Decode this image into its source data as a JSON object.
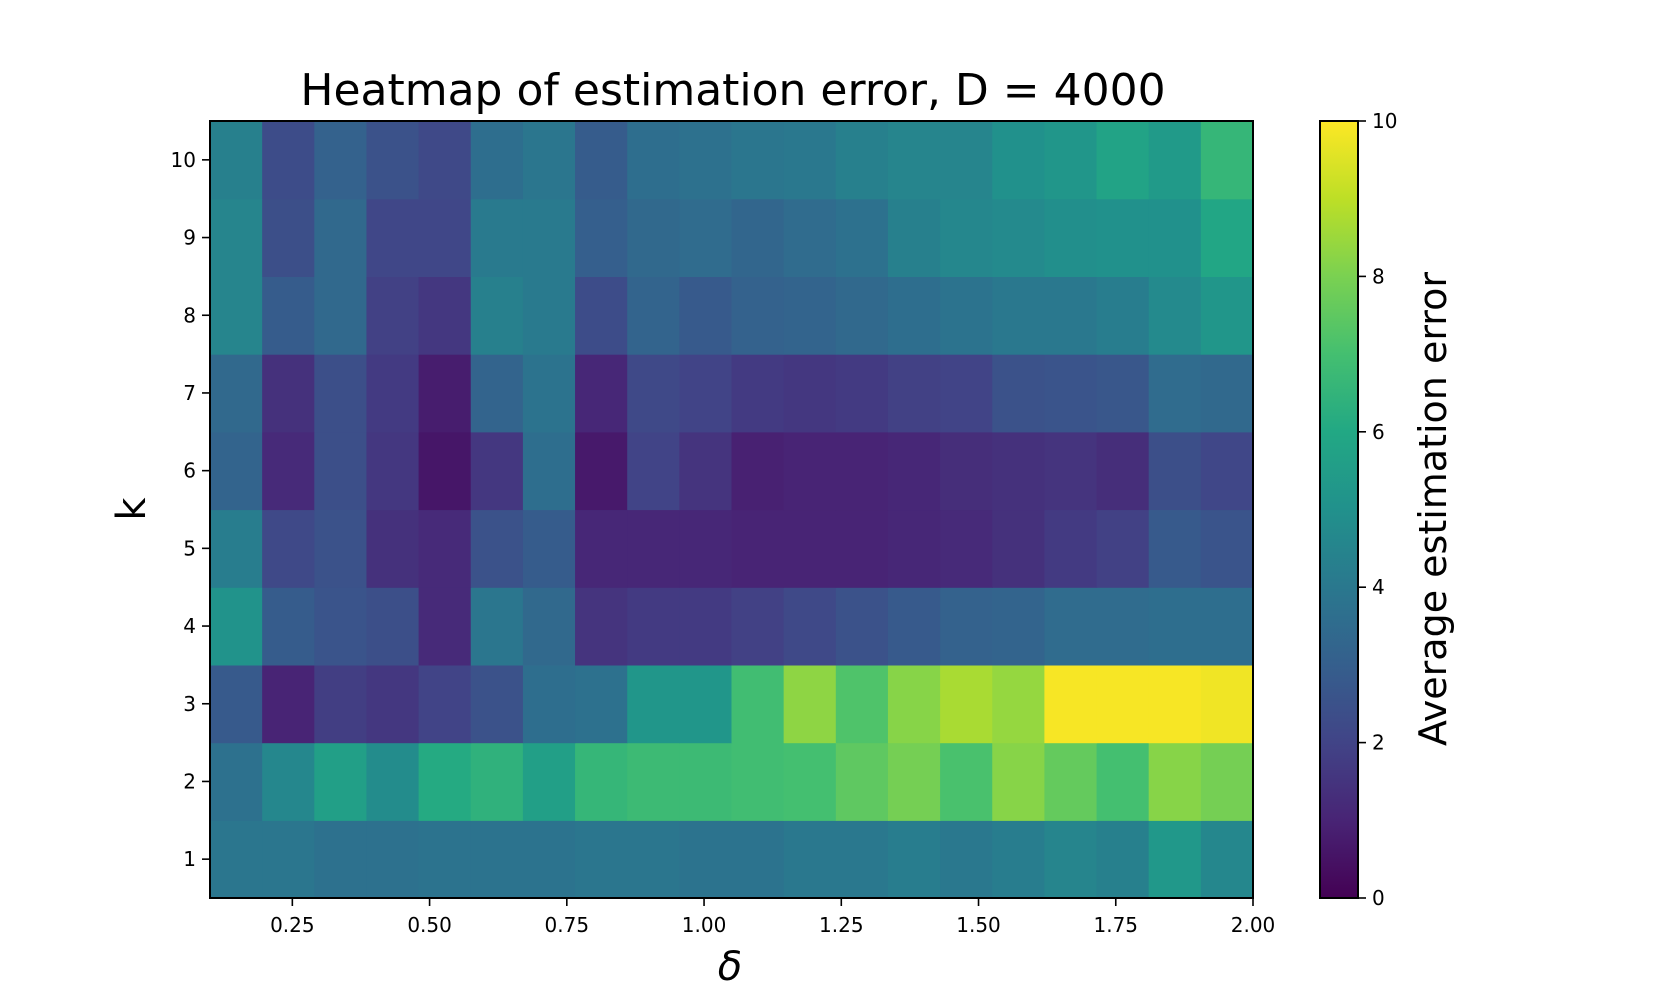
{
  "chart_data": {
    "type": "heatmap",
    "title": "Heatmap of estimation error, D = 4000",
    "xlabel": "δ",
    "ylabel": "k",
    "colorbar_label": "Average estimation error",
    "colormap": "viridis",
    "color_range": [
      0,
      10
    ],
    "colorbar_ticks": [
      "0",
      "2",
      "4",
      "6",
      "8",
      "10"
    ],
    "x_range": [
      0.1,
      2.0
    ],
    "x_ticks": [
      "0.25",
      "0.50",
      "0.75",
      "1.00",
      "1.25",
      "1.50",
      "1.75",
      "2.00"
    ],
    "y_ticks": [
      "1",
      "2",
      "3",
      "4",
      "5",
      "6",
      "7",
      "8",
      "9",
      "10"
    ],
    "x": [
      0.1,
      0.2,
      0.3,
      0.4,
      0.5,
      0.6,
      0.7,
      0.8,
      0.9,
      1.0,
      1.1,
      1.2,
      1.3,
      1.4,
      1.5,
      1.6,
      1.7,
      1.8,
      1.9,
      2.0
    ],
    "y": [
      1,
      2,
      3,
      4,
      5,
      6,
      7,
      8,
      9,
      10
    ],
    "z": [
      [
        3.9,
        3.9,
        3.7,
        3.7,
        3.8,
        3.8,
        3.8,
        3.9,
        3.9,
        3.8,
        3.8,
        4.0,
        4.0,
        4.2,
        4.0,
        4.2,
        4.5,
        4.3,
        5.3,
        4.6
      ],
      [
        3.7,
        4.6,
        5.6,
        4.8,
        6.1,
        6.4,
        5.6,
        6.6,
        6.8,
        6.8,
        6.9,
        7.0,
        7.5,
        7.9,
        7.1,
        8.2,
        7.6,
        7.0,
        8.2,
        7.9
      ],
      [
        2.8,
        1.0,
        1.8,
        1.6,
        2.0,
        2.5,
        3.6,
        3.7,
        5.2,
        5.2,
        6.9,
        8.3,
        7.2,
        8.2,
        8.7,
        8.4,
        9.9,
        9.9,
        9.9,
        9.8
      ],
      [
        5.1,
        2.9,
        2.6,
        2.4,
        1.2,
        3.9,
        3.4,
        1.5,
        1.7,
        1.7,
        1.9,
        2.2,
        2.5,
        2.8,
        3.1,
        3.2,
        3.5,
        3.5,
        3.6,
        3.6
      ],
      [
        4.2,
        2.2,
        2.5,
        1.4,
        1.2,
        2.5,
        2.9,
        1.1,
        1.1,
        1.1,
        1.0,
        1.0,
        1.0,
        1.1,
        1.2,
        1.4,
        1.7,
        1.9,
        2.8,
        2.6
      ],
      [
        3.2,
        1.2,
        2.4,
        1.6,
        0.6,
        1.6,
        3.6,
        0.7,
        2.0,
        1.5,
        0.9,
        1.0,
        1.0,
        1.1,
        1.3,
        1.4,
        1.5,
        1.3,
        2.4,
        2.1
      ],
      [
        3.4,
        1.4,
        2.4,
        1.7,
        0.8,
        3.2,
        3.8,
        1.1,
        2.2,
        2.0,
        1.7,
        1.6,
        1.7,
        1.9,
        2.0,
        2.5,
        2.6,
        2.7,
        3.5,
        3.4
      ],
      [
        4.5,
        2.9,
        3.4,
        1.9,
        1.6,
        4.3,
        4.1,
        2.3,
        3.2,
        2.8,
        3.1,
        3.2,
        3.4,
        3.6,
        3.8,
        4.0,
        4.0,
        4.2,
        4.7,
        5.2
      ],
      [
        4.5,
        2.4,
        3.4,
        2.1,
        2.1,
        4.1,
        4.1,
        3.0,
        3.4,
        3.5,
        3.3,
        3.5,
        3.7,
        4.3,
        4.6,
        4.7,
        4.9,
        5.0,
        5.0,
        5.9
      ],
      [
        4.3,
        2.3,
        3.1,
        2.5,
        2.2,
        3.6,
        3.9,
        2.9,
        3.6,
        3.7,
        3.9,
        4.0,
        4.3,
        4.5,
        4.5,
        5.0,
        5.2,
        5.8,
        5.4,
        6.6
      ]
    ]
  }
}
